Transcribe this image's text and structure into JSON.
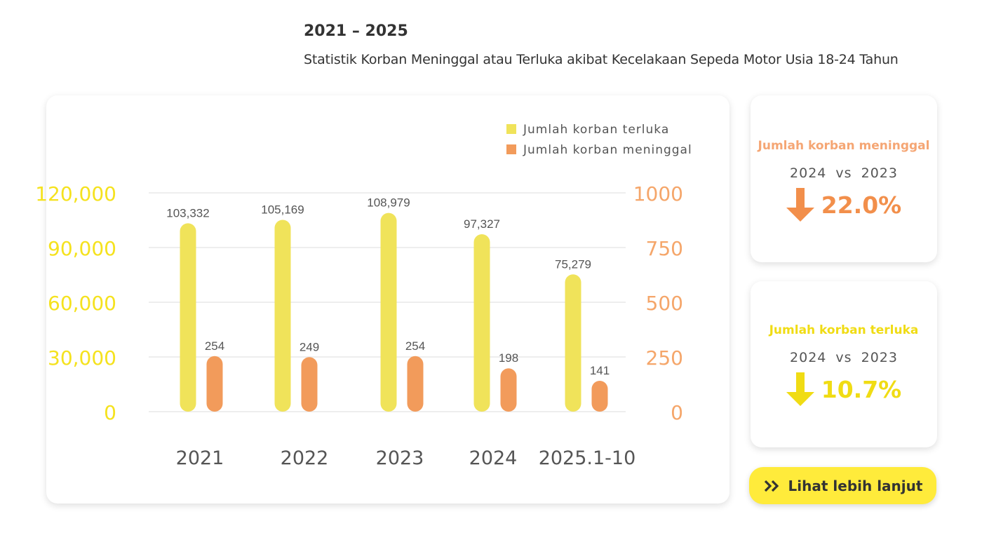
{
  "header": {
    "year_range": "2021 – 2025",
    "subtitle": "Statistik Korban Meninggal atau Terluka akibat Kecelakaan Sepeda Motor Usia 18-24 Tahun"
  },
  "chart_data": {
    "type": "bar",
    "categories": [
      "2021",
      "2022",
      "2023",
      "2024",
      "2025.1-10"
    ],
    "series": [
      {
        "name": "Jumlah korban terluka",
        "axis": "left",
        "color": "#f0e35a",
        "values": [
          103332,
          105169,
          108979,
          97327,
          75279
        ],
        "labels": [
          "103,332",
          "105,169",
          "108,979",
          "97,327",
          "75,279"
        ]
      },
      {
        "name": "Jumlah korban meninggal",
        "axis": "right",
        "color": "#f29b5b",
        "values": [
          254,
          249,
          254,
          198,
          141
        ],
        "labels": [
          "254",
          "249",
          "254",
          "198",
          "141"
        ]
      }
    ],
    "left_axis": {
      "ylim": [
        0,
        120000
      ],
      "ticks": [
        "0",
        "30,000",
        "60,000",
        "90,000",
        "120,000"
      ],
      "color": "#f5e21e"
    },
    "right_axis": {
      "ylim": [
        0,
        1000
      ],
      "ticks": [
        "0",
        "250",
        "500",
        "750",
        "1000"
      ],
      "color": "#f5a66a"
    },
    "grid": true,
    "legend": "top-right"
  },
  "stats": [
    {
      "title": "Jumlah korban meninggal",
      "compare": "2024 vs 2023",
      "change": "22.0%",
      "direction": "down",
      "title_color": "#f5a674",
      "color": "#f28f4b",
      "icon": "arrow-down-icon"
    },
    {
      "title": "Jumlah korban terluka",
      "compare": "2024 vs 2023",
      "change": "10.7%",
      "direction": "down",
      "title_color": "#f0dc14",
      "color": "#f0dc14",
      "icon": "arrow-down-icon"
    }
  ],
  "button": {
    "label": "Lihat lebih lanjut",
    "icon": "double-chevron-right-icon"
  }
}
